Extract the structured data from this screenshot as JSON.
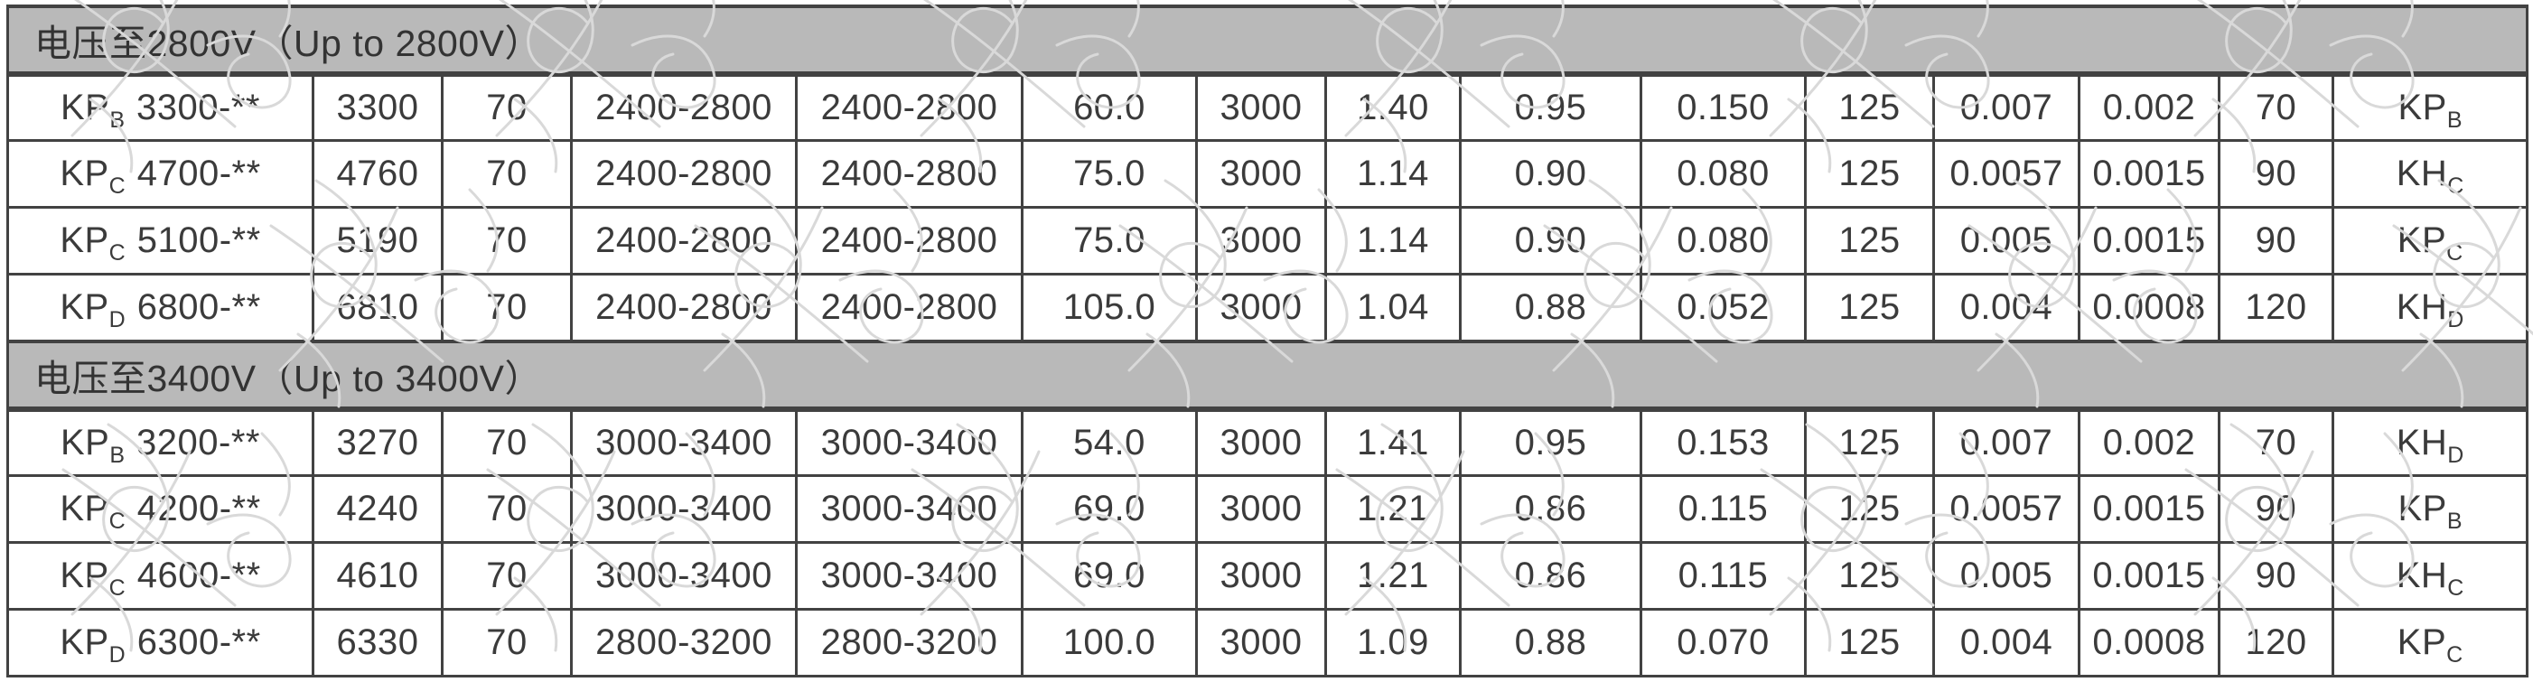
{
  "table": {
    "sections": [
      {
        "header": "电压至2800V（Up to 2800V）",
        "rows": [
          {
            "model": {
              "base": "KP",
              "sub": "B",
              "suffix": "3300-**"
            },
            "values": [
              "3300",
              "70",
              "2400-2800",
              "2400-2800",
              "60.0",
              "3000",
              "1.40",
              "0.95",
              "0.150",
              "125",
              "0.007",
              "0.002",
              "70"
            ],
            "match": {
              "base": "KP",
              "sub": "B"
            }
          },
          {
            "model": {
              "base": "KP",
              "sub": "C",
              "suffix": "4700-**"
            },
            "values": [
              "4760",
              "70",
              "2400-2800",
              "2400-2800",
              "75.0",
              "3000",
              "1.14",
              "0.90",
              "0.080",
              "125",
              "0.0057",
              "0.0015",
              "90"
            ],
            "match": {
              "base": "KH",
              "sub": "C"
            }
          },
          {
            "model": {
              "base": "KP",
              "sub": "C",
              "suffix": "5100-**"
            },
            "values": [
              "5190",
              "70",
              "2400-2800",
              "2400-2800",
              "75.0",
              "3000",
              "1.14",
              "0.90",
              "0.080",
              "125",
              "0.005",
              "0.0015",
              "90"
            ],
            "match": {
              "base": "KP",
              "sub": "C"
            }
          },
          {
            "model": {
              "base": "KP",
              "sub": "D",
              "suffix": "6800-**"
            },
            "values": [
              "6810",
              "70",
              "2400-2800",
              "2400-2800",
              "105.0",
              "3000",
              "1.04",
              "0.88",
              "0.052",
              "125",
              "0.004",
              "0.0008",
              "120"
            ],
            "match": {
              "base": "KH",
              "sub": "D"
            }
          }
        ]
      },
      {
        "header": "电压至3400V（Up to 3400V）",
        "rows": [
          {
            "model": {
              "base": "KP",
              "sub": "B",
              "suffix": "3200-**"
            },
            "values": [
              "3270",
              "70",
              "3000-3400",
              "3000-3400",
              "54.0",
              "3000",
              "1.41",
              "0.95",
              "0.153",
              "125",
              "0.007",
              "0.002",
              "70"
            ],
            "match": {
              "base": "KH",
              "sub": "D"
            }
          },
          {
            "model": {
              "base": "KP",
              "sub": "C",
              "suffix": "4200-**"
            },
            "values": [
              "4240",
              "70",
              "3000-3400",
              "3000-3400",
              "69.0",
              "3000",
              "1.21",
              "0.86",
              "0.115",
              "125",
              "0.0057",
              "0.0015",
              "90"
            ],
            "match": {
              "base": "KP",
              "sub": "B"
            }
          },
          {
            "model": {
              "base": "KP",
              "sub": "C",
              "suffix": "4600-**"
            },
            "values": [
              "4610",
              "70",
              "3000-3400",
              "3000-3400",
              "69.0",
              "3000",
              "1.21",
              "0.86",
              "0.115",
              "125",
              "0.005",
              "0.0015",
              "90"
            ],
            "match": {
              "base": "KH",
              "sub": "C"
            }
          },
          {
            "model": {
              "base": "KP",
              "sub": "D",
              "suffix": "6300-**"
            },
            "values": [
              "6330",
              "70",
              "2800-3200",
              "2800-3200",
              "100.0",
              "3000",
              "1.09",
              "0.88",
              "0.070",
              "125",
              "0.004",
              "0.0008",
              "120"
            ],
            "match": {
              "base": "KP",
              "sub": "C"
            }
          }
        ]
      }
    ]
  },
  "colors": {
    "section_header_bg": "#b9b9b9",
    "grid_border": "#424242",
    "cell_text": "#3b3b3b",
    "watermark_outline": "#d9d9d9"
  }
}
